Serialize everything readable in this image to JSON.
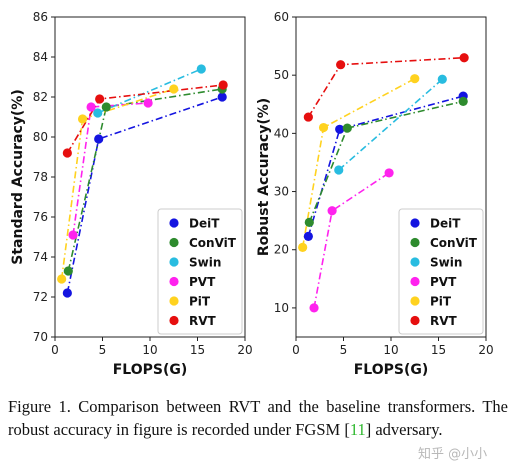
{
  "chart_data": [
    {
      "type": "line",
      "xlabel": "FLOPS(G)",
      "ylabel": "Standard Accuracy(%)",
      "xlim": [
        0,
        20
      ],
      "ylim": [
        70,
        86
      ],
      "xticks": [
        0,
        5,
        10,
        15,
        20
      ],
      "yticks": [
        70,
        72,
        74,
        76,
        78,
        80,
        82,
        84,
        86
      ],
      "legend_position": "bottom-right",
      "series": [
        {
          "name": "DeiT",
          "color": "#1414e0",
          "x": [
            1.3,
            4.6,
            17.6
          ],
          "y": [
            72.2,
            79.9,
            82.0
          ]
        },
        {
          "name": "ConViT",
          "color": "#2e8b2e",
          "x": [
            1.4,
            5.4,
            17.6
          ],
          "y": [
            73.3,
            81.5,
            82.4
          ]
        },
        {
          "name": "Swin",
          "color": "#28bce0",
          "x": [
            4.5,
            15.4
          ],
          "y": [
            81.2,
            83.4
          ]
        },
        {
          "name": "PVT",
          "color": "#ff22ee",
          "x": [
            1.9,
            3.8,
            9.8
          ],
          "y": [
            75.1,
            81.5,
            81.7
          ]
        },
        {
          "name": "PiT",
          "color": "#ffd21f",
          "x": [
            0.7,
            2.9,
            12.5
          ],
          "y": [
            72.9,
            80.9,
            82.4
          ]
        },
        {
          "name": "RVT",
          "color": "#e60f0f",
          "x": [
            1.3,
            4.7,
            17.7
          ],
          "y": [
            79.2,
            81.9,
            82.6
          ]
        }
      ]
    },
    {
      "type": "line",
      "xlabel": "FLOPS(G)",
      "ylabel": "Robust Accuracy(%)",
      "xlim": [
        0,
        20
      ],
      "ylim": [
        5,
        60
      ],
      "xticks": [
        0,
        5,
        10,
        15,
        20
      ],
      "yticks": [
        10,
        20,
        30,
        40,
        50,
        60
      ],
      "legend_position": "bottom-right",
      "series": [
        {
          "name": "DeiT",
          "color": "#1414e0",
          "x": [
            1.3,
            4.6,
            17.6
          ],
          "y": [
            22.3,
            40.7,
            46.4
          ]
        },
        {
          "name": "ConViT",
          "color": "#2e8b2e",
          "x": [
            1.4,
            5.4,
            17.6
          ],
          "y": [
            24.7,
            40.9,
            45.5
          ]
        },
        {
          "name": "Swin",
          "color": "#28bce0",
          "x": [
            4.5,
            15.4
          ],
          "y": [
            33.7,
            49.3
          ]
        },
        {
          "name": "PVT",
          "color": "#ff22ee",
          "x": [
            1.9,
            3.8,
            9.8
          ],
          "y": [
            10.0,
            26.7,
            33.2
          ]
        },
        {
          "name": "PiT",
          "color": "#ffd21f",
          "x": [
            0.7,
            2.9,
            12.5
          ],
          "y": [
            20.4,
            41.0,
            49.4
          ]
        },
        {
          "name": "RVT",
          "color": "#e60f0f",
          "x": [
            1.3,
            4.7,
            17.7
          ],
          "y": [
            42.8,
            51.8,
            53.0
          ]
        }
      ]
    }
  ],
  "caption": {
    "prefix": "Figure 1. Comparison between RVT and the baseline transformers. The robust accuracy in figure is recorded under FGSM [",
    "ref": "11",
    "suffix": "] adversary."
  },
  "watermark": "知乎 @小小"
}
